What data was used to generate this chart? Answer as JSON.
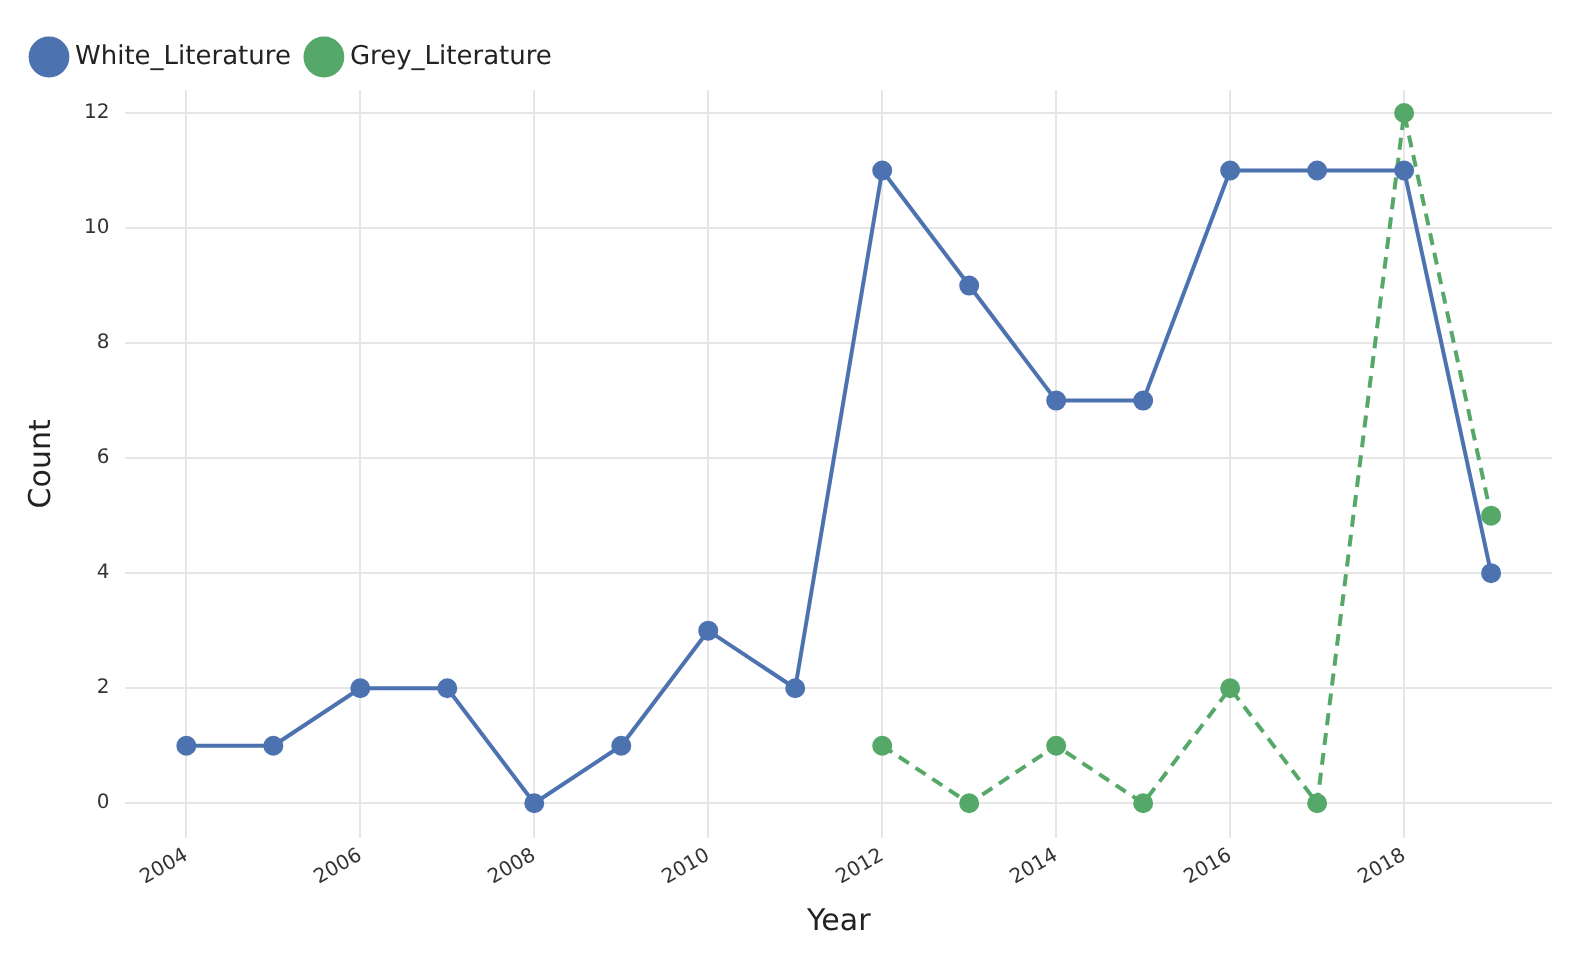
{
  "chart_data": {
    "type": "line",
    "xlabel": "Year",
    "ylabel": "Count",
    "xlim": [
      2003.3,
      2019.7
    ],
    "xticks": [
      2004,
      2006,
      2008,
      2010,
      2012,
      2014,
      2016,
      2018
    ],
    "ylim": [
      -0.6,
      12.4
    ],
    "yticks": [
      0,
      2,
      4,
      6,
      8,
      10,
      12
    ],
    "grid": true,
    "legend": "top left",
    "marker": "circle",
    "series": [
      {
        "name": "White_Literature",
        "color": "#4c72b0",
        "line_style": "solid",
        "x": [
          2004,
          2005,
          2006,
          2007,
          2008,
          2009,
          2010,
          2011,
          2012,
          2013,
          2014,
          2015,
          2016,
          2017,
          2018,
          2019
        ],
        "values": [
          1,
          1,
          2,
          2,
          0,
          1,
          3,
          2,
          11,
          9,
          7,
          7,
          11,
          11,
          11,
          4
        ]
      },
      {
        "name": "Grey_Literature",
        "color": "#55a868",
        "line_style": "dashed",
        "x": [
          2012,
          2013,
          2014,
          2015,
          2016,
          2017,
          2018,
          2019
        ],
        "values": [
          1,
          0,
          1,
          0,
          2,
          0,
          12,
          5
        ]
      }
    ]
  }
}
